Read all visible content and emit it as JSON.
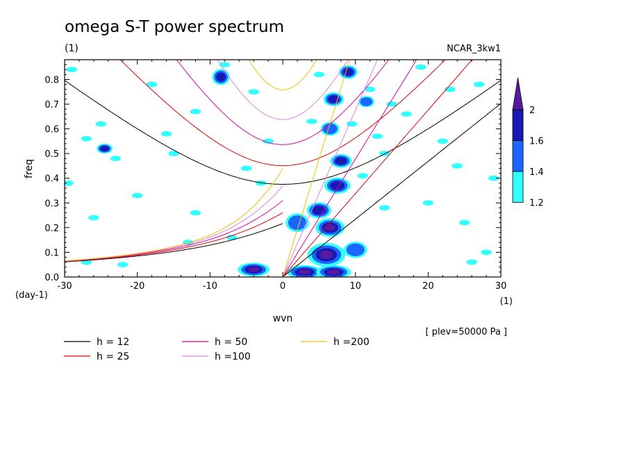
{
  "chart_data": {
    "type": "contour",
    "title": "omega S-T power spectrum",
    "subtitle_left": "(1)",
    "subtitle_right": "NCAR_3kw1",
    "xlabel": "wvn",
    "ylabel": "freq",
    "x_unit": "(1)",
    "y_unit": "(day-1)",
    "xlim": [
      -30,
      30
    ],
    "ylim": [
      0,
      0.88
    ],
    "x_ticks": [
      {
        "v": -30,
        "label": "-30"
      },
      {
        "v": -20,
        "label": "-20"
      },
      {
        "v": -10,
        "label": "-10"
      },
      {
        "v": 0,
        "label": "0"
      },
      {
        "v": 10,
        "label": "10"
      },
      {
        "v": 20,
        "label": "20"
      },
      {
        "v": 30,
        "label": "30"
      }
    ],
    "y_ticks": [
      {
        "v": 0,
        "label": "0.0"
      },
      {
        "v": 0.1,
        "label": "0.1"
      },
      {
        "v": 0.2,
        "label": "0.2"
      },
      {
        "v": 0.3,
        "label": "0.3"
      },
      {
        "v": 0.4,
        "label": "0.4"
      },
      {
        "v": 0.5,
        "label": "0.5"
      },
      {
        "v": 0.6,
        "label": "0.6"
      },
      {
        "v": 0.7,
        "label": "0.7"
      },
      {
        "v": 0.8,
        "label": "0.8"
      }
    ],
    "annotation": "[ plev=50000 Pa ]",
    "colorbar": {
      "levels": [
        "1.2",
        "1.4",
        "1.6",
        "2"
      ],
      "colors": [
        "#33ffff",
        "#1a66ff",
        "#1a1ab3",
        "#5a1aa0"
      ]
    },
    "dispersion_curves": [
      {
        "label": "h = 12",
        "h": 12,
        "color": "#000000"
      },
      {
        "label": "h = 25",
        "h": 25,
        "color": "#e00000"
      },
      {
        "label": "h = 50",
        "h": 50,
        "color": "#e000a0"
      },
      {
        "label": "h =100",
        "h": 100,
        "color": "#e080e0"
      },
      {
        "label": "h =200",
        "h": 200,
        "color": "#f0c000"
      }
    ],
    "spectral_peaks": [
      {
        "x": 6,
        "y": 0.09,
        "rx": 2.2,
        "ry": 0.04,
        "level": 3
      },
      {
        "x": 6.5,
        "y": 0.2,
        "rx": 1.6,
        "ry": 0.03,
        "level": 3
      },
      {
        "x": 3,
        "y": 0.02,
        "rx": 2.0,
        "ry": 0.02,
        "level": 3
      },
      {
        "x": -4,
        "y": 0.03,
        "rx": 1.8,
        "ry": 0.02,
        "level": 3
      },
      {
        "x": 7,
        "y": 0.02,
        "rx": 2.0,
        "ry": 0.02,
        "level": 3
      },
      {
        "x": 5,
        "y": 0.27,
        "rx": 1.3,
        "ry": 0.025,
        "level": 2
      },
      {
        "x": 7.5,
        "y": 0.37,
        "rx": 1.4,
        "ry": 0.025,
        "level": 2
      },
      {
        "x": 8,
        "y": 0.47,
        "rx": 1.1,
        "ry": 0.02,
        "level": 2
      },
      {
        "x": 7,
        "y": 0.72,
        "rx": 1.0,
        "ry": 0.02,
        "level": 2
      },
      {
        "x": 9,
        "y": 0.83,
        "rx": 0.9,
        "ry": 0.02,
        "level": 2
      },
      {
        "x": 10,
        "y": 0.11,
        "rx": 1.2,
        "ry": 0.025,
        "level": 1
      },
      {
        "x": 2,
        "y": 0.22,
        "rx": 1.2,
        "ry": 0.03,
        "level": 1
      },
      {
        "x": -8.5,
        "y": 0.81,
        "rx": 0.8,
        "ry": 0.025,
        "level": 2
      },
      {
        "x": -24.5,
        "y": 0.52,
        "rx": 0.7,
        "ry": 0.012,
        "level": 2
      },
      {
        "x": 6.5,
        "y": 0.6,
        "rx": 0.9,
        "ry": 0.02,
        "level": 1
      },
      {
        "x": 11.5,
        "y": 0.71,
        "rx": 0.7,
        "ry": 0.015,
        "level": 1
      }
    ],
    "background_patches": [
      [
        -29,
        0.84
      ],
      [
        -25,
        0.62
      ],
      [
        -27,
        0.56
      ],
      [
        -18,
        0.78
      ],
      [
        -12,
        0.67
      ],
      [
        -15,
        0.5
      ],
      [
        -23,
        0.48
      ],
      [
        -29.5,
        0.38
      ],
      [
        -12,
        0.26
      ],
      [
        -13,
        0.14
      ],
      [
        -27,
        0.06
      ],
      [
        -22,
        0.05
      ],
      [
        -8,
        0.86
      ],
      [
        -4,
        0.75
      ],
      [
        -2,
        0.55
      ],
      [
        -5,
        0.44
      ],
      [
        -7,
        0.16
      ],
      [
        -3,
        0.38
      ],
      [
        12,
        0.76
      ],
      [
        15,
        0.7
      ],
      [
        17,
        0.66
      ],
      [
        13,
        0.57
      ],
      [
        9.5,
        0.62
      ],
      [
        14,
        0.5
      ],
      [
        22,
        0.55
      ],
      [
        24,
        0.45
      ],
      [
        27,
        0.78
      ],
      [
        20,
        0.3
      ],
      [
        29,
        0.4
      ],
      [
        28,
        0.1
      ],
      [
        25,
        0.22
      ],
      [
        14,
        0.28
      ],
      [
        23,
        0.76
      ],
      [
        19,
        0.85
      ],
      [
        26,
        0.06
      ],
      [
        -16,
        0.58
      ],
      [
        -20,
        0.33
      ],
      [
        -26,
        0.24
      ],
      [
        11,
        0.41
      ],
      [
        4,
        0.63
      ],
      [
        5,
        0.82
      ]
    ]
  }
}
